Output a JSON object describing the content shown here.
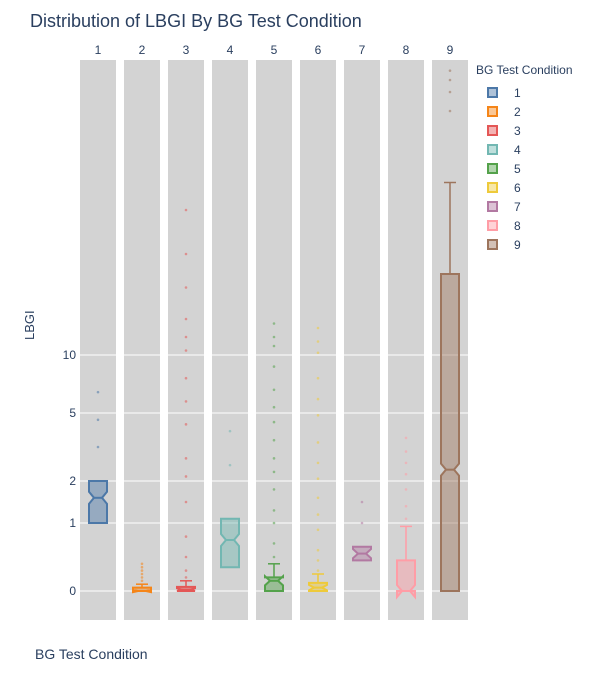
{
  "chart_data": {
    "type": "box",
    "title": "Distribution of LBGI By BG Test Condition",
    "xlabel": "BG Test Condition",
    "ylabel": "LBGI",
    "legend_title": "BG Test Condition",
    "legend_position": "right",
    "facet_labels": [
      "1",
      "2",
      "3",
      "4",
      "5",
      "6",
      "7",
      "8",
      "9"
    ],
    "y_ticks": [
      0,
      1,
      2,
      5,
      10
    ],
    "y_scale": "compressed (non-linear)",
    "series": [
      {
        "name": "1",
        "color": "#4c78a8",
        "q1": 1.0,
        "median": 1.6,
        "q3": 2.0,
        "whisker_low": 1.0,
        "whisker_high": 2.0,
        "outliers": [
          3.5,
          4.7,
          6.8
        ]
      },
      {
        "name": "2",
        "color": "#f58518",
        "q1": 0.0,
        "median": 0.0,
        "q3": 0.05,
        "whisker_low": 0.0,
        "whisker_high": 0.1,
        "outliers": [
          0.15,
          0.2,
          0.25,
          0.3,
          0.35,
          0.4
        ]
      },
      {
        "name": "3",
        "color": "#e45756",
        "q1": 0.0,
        "median": 0.02,
        "q3": 0.06,
        "whisker_low": 0.0,
        "whisker_high": 0.15,
        "outliers": [
          0.2,
          0.3,
          0.5,
          0.8,
          1.5,
          2.2,
          3.0,
          4.5,
          6.0,
          8.0,
          11,
          14,
          18,
          25,
          32,
          40
        ]
      },
      {
        "name": "4",
        "color": "#72b7b2",
        "q1": 0.35,
        "median": 0.75,
        "q3": 1.1,
        "whisker_low": 0.35,
        "whisker_high": 1.1,
        "outliers": [
          2.7,
          4.2
        ]
      },
      {
        "name": "5",
        "color": "#54a24b",
        "q1": 0.0,
        "median": 0.15,
        "q3": 0.2,
        "whisker_low": 0.0,
        "whisker_high": 0.4,
        "outliers": [
          0.5,
          0.7,
          1.0,
          1.3,
          1.8,
          2.4,
          3.0,
          3.8,
          4.6,
          5.5,
          7.0,
          9.0,
          12,
          14,
          17
        ]
      },
      {
        "name": "6",
        "color": "#eeca3b",
        "q1": 0.0,
        "median": 0.05,
        "q3": 0.12,
        "whisker_low": 0.0,
        "whisker_high": 0.25,
        "outliers": [
          0.3,
          0.45,
          0.6,
          0.9,
          1.2,
          1.6,
          2.1,
          2.8,
          3.7,
          4.9,
          6.2,
          8.0,
          10.5,
          13,
          16
        ]
      },
      {
        "name": "7",
        "color": "#b279a2",
        "q1": 0.45,
        "median": 0.55,
        "q3": 0.65,
        "whisker_low": 0.45,
        "whisker_high": 0.65,
        "outliers": [
          1.0,
          1.5
        ]
      },
      {
        "name": "8",
        "color": "#ff9da6",
        "q1": 0.0,
        "median": 0.0,
        "q3": 0.45,
        "whisker_low": 0.0,
        "whisker_high": 0.95,
        "outliers": [
          1.1,
          1.4,
          1.8,
          2.3,
          2.8,
          3.3,
          3.9
        ]
      },
      {
        "name": "9",
        "color": "#9d755d",
        "q1": 0.0,
        "median": 2.5,
        "q3": 28,
        "whisker_low": 0.0,
        "whisker_high": 45,
        "outliers": [
          58,
          66,
          75,
          82
        ]
      }
    ]
  }
}
